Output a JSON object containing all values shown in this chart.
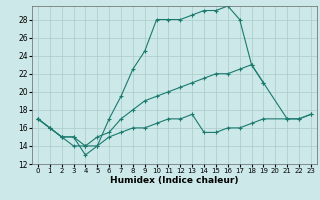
{
  "xlabel": "Humidex (Indice chaleur)",
  "bg_color": "#cce8e8",
  "grid_color": "#aacccc",
  "line_color": "#1a7a6e",
  "xlim": [
    -0.5,
    23.5
  ],
  "ylim": [
    12,
    29.5
  ],
  "xticks": [
    0,
    1,
    2,
    3,
    4,
    5,
    6,
    7,
    8,
    9,
    10,
    11,
    12,
    13,
    14,
    15,
    16,
    17,
    18,
    19,
    20,
    21,
    22,
    23
  ],
  "yticks": [
    12,
    14,
    16,
    18,
    20,
    22,
    24,
    26,
    28
  ],
  "series1_x": [
    0,
    1,
    2,
    3,
    4,
    5,
    6,
    7,
    8,
    9,
    10,
    11,
    12,
    13,
    14,
    15,
    16,
    17,
    18,
    19
  ],
  "series1_y": [
    17,
    16,
    15,
    14,
    14,
    14,
    17,
    19.5,
    22.5,
    24.5,
    28,
    28,
    28,
    28.5,
    29,
    29,
    29.5,
    28,
    23,
    21
  ],
  "series2_x": [
    0,
    1,
    2,
    3,
    4,
    5,
    6,
    7,
    8,
    9,
    10,
    11,
    12,
    13,
    14,
    15,
    16,
    17,
    18,
    19,
    21,
    22,
    23
  ],
  "series2_y": [
    17,
    16,
    15,
    15,
    14,
    15,
    15.5,
    17,
    18,
    19,
    19.5,
    20,
    20.5,
    21,
    21.5,
    22,
    22,
    22.5,
    23,
    21,
    17,
    17,
    17.5
  ],
  "series3_x": [
    0,
    1,
    2,
    3,
    4,
    5,
    6,
    7,
    8,
    9,
    10,
    11,
    12,
    13,
    14,
    15,
    16,
    17,
    18,
    19,
    21,
    22,
    23
  ],
  "series3_y": [
    17,
    16,
    15,
    15,
    13,
    14,
    15,
    15.5,
    16,
    16,
    16.5,
    17,
    17,
    17.5,
    15.5,
    15.5,
    16,
    16,
    16.5,
    17,
    17,
    17,
    17.5
  ]
}
